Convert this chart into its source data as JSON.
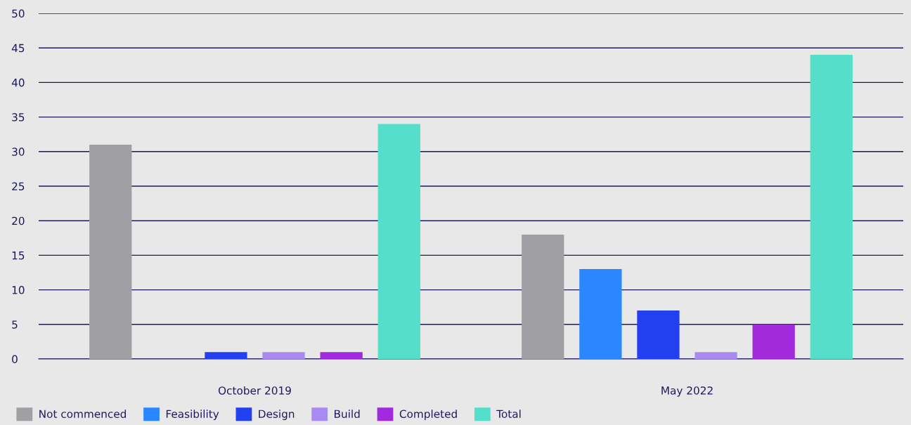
{
  "chart_data": {
    "type": "bar",
    "categories": [
      "October 2019",
      "May 2022"
    ],
    "series": [
      {
        "name": "Not commenced",
        "color": "#a0a0a4",
        "values": [
          31,
          18
        ]
      },
      {
        "name": "Feasibility",
        "color": "#2a87ff",
        "values": [
          0,
          13
        ]
      },
      {
        "name": "Design",
        "color": "#2340f0",
        "values": [
          1,
          7
        ]
      },
      {
        "name": "Build",
        "color": "#a98af5",
        "values": [
          1,
          1
        ]
      },
      {
        "name": "Completed",
        "color": "#a12bdc",
        "values": [
          1,
          5
        ]
      },
      {
        "name": "Total",
        "color": "#55dec9",
        "values": [
          34,
          44
        ]
      }
    ],
    "ylim": [
      0,
      50
    ],
    "yticks": [
      0,
      5,
      10,
      15,
      20,
      25,
      30,
      35,
      40,
      45,
      50
    ],
    "grid": "y",
    "legend": "bottom left"
  }
}
